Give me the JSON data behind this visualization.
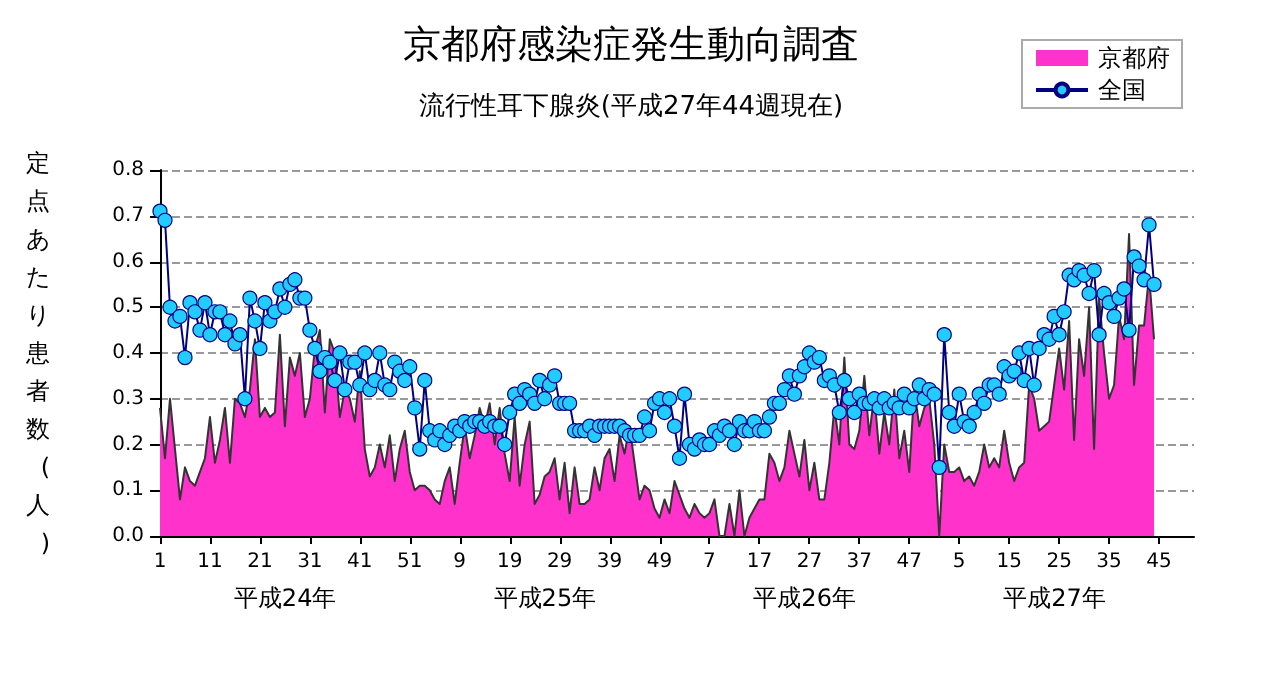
{
  "chart_data": {
    "type": "area",
    "title": "京都府感染症発生動向調査",
    "subtitle": "流行性耳下腺炎(平成27年44週現在)",
    "ylabel": "定点あたり患者数(人)",
    "annotations": [
      "平成24年",
      "平成25年",
      "平成26年",
      "平成27年"
    ],
    "categories": [
      "1",
      null,
      null,
      null,
      null,
      null,
      null,
      null,
      null,
      null,
      "11",
      null,
      null,
      null,
      null,
      null,
      null,
      null,
      null,
      null,
      "21",
      null,
      null,
      null,
      null,
      null,
      null,
      null,
      null,
      null,
      "31",
      null,
      null,
      null,
      null,
      null,
      null,
      null,
      null,
      null,
      "41",
      null,
      null,
      null,
      null,
      null,
      null,
      null,
      null,
      null,
      "51",
      null,
      null,
      null,
      null,
      null,
      null,
      null,
      null,
      null,
      "9",
      null,
      null,
      null,
      null,
      null,
      null,
      null,
      null,
      null,
      "19",
      null,
      null,
      null,
      null,
      null,
      null,
      null,
      null,
      null,
      "29",
      null,
      null,
      null,
      null,
      null,
      null,
      null,
      null,
      null,
      "39",
      null,
      null,
      null,
      null,
      null,
      null,
      null,
      null,
      null,
      "49",
      null,
      null,
      null,
      null,
      null,
      null,
      null,
      null,
      null,
      "7",
      null,
      null,
      null,
      null,
      null,
      null,
      null,
      null,
      null,
      "17",
      null,
      null,
      null,
      null,
      null,
      null,
      null,
      null,
      null,
      "27",
      null,
      null,
      null,
      null,
      null,
      null,
      null,
      null,
      null,
      "37",
      null,
      null,
      null,
      null,
      null,
      null,
      null,
      null,
      null,
      "47",
      null,
      null,
      null,
      null,
      null,
      null,
      null,
      null,
      null,
      "5",
      null,
      null,
      null,
      null,
      null,
      null,
      null,
      null,
      null,
      "15",
      null,
      null,
      null,
      null,
      null,
      null,
      null,
      null,
      null,
      "25",
      null,
      null,
      null,
      null,
      null,
      null,
      null,
      null,
      null,
      "35",
      null,
      null,
      null,
      null,
      null,
      null,
      null,
      null,
      null,
      "45",
      null,
      null,
      null,
      null,
      null,
      null,
      null
    ],
    "series": [
      {
        "name": "京都府",
        "color": "#ff33cc",
        "values": [
          0.28,
          0.17,
          0.3,
          0.19,
          0.08,
          0.15,
          0.12,
          0.11,
          0.14,
          0.17,
          0.26,
          0.16,
          0.21,
          0.28,
          0.16,
          0.3,
          0.29,
          0.26,
          0.32,
          0.43,
          0.26,
          0.28,
          0.26,
          0.27,
          0.44,
          0.24,
          0.39,
          0.35,
          0.4,
          0.26,
          0.3,
          0.41,
          0.45,
          0.27,
          0.43,
          0.4,
          0.26,
          0.32,
          0.3,
          0.25,
          0.36,
          0.19,
          0.13,
          0.15,
          0.2,
          0.15,
          0.22,
          0.12,
          0.19,
          0.23,
          0.14,
          0.1,
          0.11,
          0.11,
          0.1,
          0.08,
          0.07,
          0.12,
          0.15,
          0.07,
          0.16,
          0.24,
          0.17,
          0.22,
          0.28,
          0.24,
          0.29,
          0.2,
          0.28,
          0.18,
          0.12,
          0.26,
          0.11,
          0.2,
          0.25,
          0.07,
          0.09,
          0.13,
          0.14,
          0.17,
          0.08,
          0.16,
          0.05,
          0.15,
          0.07,
          0.07,
          0.08,
          0.15,
          0.1,
          0.17,
          0.19,
          0.12,
          0.22,
          0.18,
          0.24,
          0.16,
          0.08,
          0.11,
          0.1,
          0.06,
          0.04,
          0.08,
          0.05,
          0.12,
          0.09,
          0.06,
          0.04,
          0.07,
          0.05,
          0.04,
          0.05,
          0.08,
          0.0,
          0.0,
          0.07,
          0.0,
          0.1,
          0.0,
          0.04,
          0.06,
          0.08,
          0.08,
          0.18,
          0.16,
          0.12,
          0.15,
          0.23,
          0.18,
          0.13,
          0.21,
          0.1,
          0.16,
          0.08,
          0.08,
          0.16,
          0.28,
          0.2,
          0.39,
          0.2,
          0.19,
          0.23,
          0.35,
          0.22,
          0.31,
          0.18,
          0.27,
          0.2,
          0.32,
          0.17,
          0.23,
          0.14,
          0.32,
          0.24,
          0.28,
          0.3,
          0.2,
          0.0,
          0.2,
          0.14,
          0.14,
          0.15,
          0.12,
          0.13,
          0.11,
          0.14,
          0.2,
          0.15,
          0.17,
          0.15,
          0.23,
          0.16,
          0.12,
          0.15,
          0.16,
          0.33,
          0.3,
          0.23,
          0.24,
          0.25,
          0.33,
          0.41,
          0.32,
          0.47,
          0.21,
          0.43,
          0.35,
          0.5,
          0.19,
          0.52,
          0.4,
          0.3,
          0.33,
          0.48,
          0.43,
          0.66,
          0.33,
          0.46,
          0.46,
          0.57,
          0.43,
          null,
          null,
          null,
          null,
          null,
          null,
          null,
          null
        ]
      },
      {
        "name": "全国",
        "type": "line",
        "color": "#000080",
        "marker": "circle",
        "values": [
          0.71,
          0.69,
          0.5,
          0.47,
          0.48,
          0.39,
          0.51,
          0.49,
          0.45,
          0.51,
          0.44,
          0.49,
          0.49,
          0.44,
          0.47,
          0.42,
          0.44,
          0.3,
          0.52,
          0.47,
          0.41,
          0.51,
          0.47,
          0.49,
          0.54,
          0.5,
          0.55,
          0.56,
          0.52,
          0.52,
          0.45,
          0.41,
          0.36,
          0.39,
          0.38,
          0.34,
          0.4,
          0.32,
          0.38,
          0.38,
          0.33,
          0.4,
          0.32,
          0.34,
          0.4,
          0.33,
          0.32,
          0.38,
          0.36,
          0.34,
          0.37,
          0.28,
          0.19,
          0.34,
          0.23,
          0.21,
          0.23,
          0.2,
          0.22,
          0.24,
          0.23,
          0.25,
          0.24,
          0.25,
          0.25,
          0.24,
          0.25,
          0.24,
          0.24,
          0.2,
          0.27,
          0.31,
          0.29,
          0.32,
          0.31,
          0.29,
          0.34,
          0.3,
          0.33,
          0.35,
          0.29,
          0.29,
          0.29,
          0.23,
          0.23,
          0.23,
          0.24,
          0.22,
          0.24,
          0.24,
          0.24,
          0.24,
          0.24,
          0.23,
          0.22,
          0.22,
          0.22,
          0.26,
          0.23,
          0.29,
          0.3,
          0.27,
          0.3,
          0.24,
          0.17,
          0.31,
          0.2,
          0.19,
          0.21,
          0.2,
          0.2,
          0.23,
          0.22,
          0.24,
          0.23,
          0.2,
          0.25,
          0.23,
          0.23,
          0.25,
          0.23,
          0.23,
          0.26,
          0.29,
          0.29,
          0.32,
          0.35,
          0.31,
          0.35,
          0.37,
          0.4,
          0.38,
          0.39,
          0.34,
          0.35,
          0.33,
          0.27,
          0.34,
          0.3,
          0.27,
          0.31,
          0.29,
          0.29,
          0.3,
          0.28,
          0.3,
          0.28,
          0.29,
          0.28,
          0.31,
          0.28,
          0.3,
          0.33,
          0.3,
          0.32,
          0.31,
          0.15,
          0.44,
          0.27,
          0.24,
          0.31,
          0.25,
          0.24,
          0.27,
          0.31,
          0.29,
          0.33,
          0.33,
          0.31,
          0.37,
          0.35,
          0.36,
          0.4,
          0.34,
          0.41,
          0.33,
          0.41,
          0.44,
          0.43,
          0.48,
          0.44,
          0.49,
          0.57,
          0.56,
          0.58,
          0.57,
          0.53,
          0.58,
          0.44,
          0.53,
          0.51,
          0.48,
          0.52,
          0.54,
          0.45,
          0.61,
          0.59,
          0.56,
          0.68,
          0.55,
          null,
          null,
          null,
          null,
          null,
          null,
          null,
          null
        ]
      }
    ],
    "ylim": [
      0,
      0.8
    ],
    "yticks": [
      {
        "value": 0,
        "label": "0.0"
      },
      {
        "value": 0.1,
        "label": "0.1"
      },
      {
        "value": 0.2,
        "label": "0.2"
      },
      {
        "value": 0.3,
        "label": "0.3"
      },
      {
        "value": 0.4,
        "label": "0.4"
      },
      {
        "value": 0.5,
        "label": "0.5"
      },
      {
        "value": 0.6,
        "label": "0.6"
      },
      {
        "value": 0.7,
        "label": "0.7"
      },
      {
        "value": 0.8,
        "label": "0.8"
      }
    ],
    "grid": "y",
    "legend": "top right"
  }
}
